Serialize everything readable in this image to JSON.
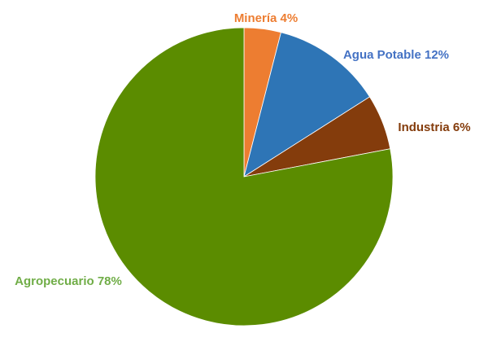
{
  "chart_data": {
    "type": "pie",
    "slices": [
      {
        "name": "Minería",
        "value": 4,
        "label": "Minería 4%",
        "color": "#ED7D31"
      },
      {
        "name": "Agua Potable",
        "value": 12,
        "label": "Agua Potable 12%",
        "color": "#2E75B6"
      },
      {
        "name": "Industria",
        "value": 6,
        "label": "Industria 6%",
        "color": "#843C0C"
      },
      {
        "name": "Agropecuario",
        "value": 78,
        "label": "Agropecuario 78%",
        "color": "#5B8C00"
      }
    ],
    "label_colors": {
      "Minería": "#ED7D31",
      "Agua Potable": "#4472C4",
      "Industria": "#843C0C",
      "Agropecuario": "#70AD47"
    },
    "start_angle": "12 o'clock",
    "direction": "clockwise",
    "legend": "none (labels placed next to slices)"
  }
}
